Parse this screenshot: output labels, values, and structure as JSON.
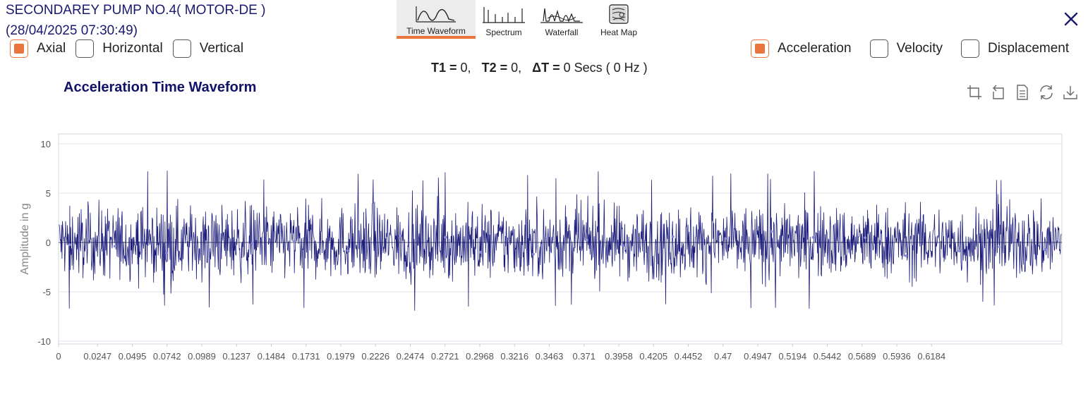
{
  "header": {
    "title_line1": "SECONDAREY PUMP NO.4( MOTOR-DE )",
    "title_line2": "(28/04/2025 07:30:49)"
  },
  "close": {
    "icon": "close-icon"
  },
  "view_tabs": [
    {
      "label": "Time Waveform",
      "icon": "time-waveform-icon",
      "active": true
    },
    {
      "label": "Spectrum",
      "icon": "spectrum-icon",
      "active": false
    },
    {
      "label": "Waterfall",
      "icon": "waterfall-icon",
      "active": false
    },
    {
      "label": "Heat Map",
      "icon": "heat-map-icon",
      "active": false
    }
  ],
  "direction_options": [
    {
      "label": "Axial",
      "checked": true
    },
    {
      "label": "Horizontal",
      "checked": false
    },
    {
      "label": "Vertical",
      "checked": false
    }
  ],
  "measure_options": [
    {
      "label": "Acceleration",
      "checked": true
    },
    {
      "label": "Velocity",
      "checked": false
    },
    {
      "label": "Displacement",
      "checked": false
    }
  ],
  "readout": {
    "t1_label": "T1 =",
    "t1_value": "0,",
    "t2_label": "T2 =",
    "t2_value": "0,",
    "dt_label": "ΔT =",
    "dt_value": "0 Secs ( 0 Hz )"
  },
  "chart_tools": [
    {
      "name": "crop-icon"
    },
    {
      "name": "undo-icon"
    },
    {
      "name": "document-icon"
    },
    {
      "name": "refresh-icon"
    },
    {
      "name": "download-icon"
    }
  ],
  "colors": {
    "accent": "#e8763e",
    "title": "#121268",
    "series": "#1a1a7a"
  },
  "chart_data": {
    "type": "line",
    "title": "Acceleration Time Waveform",
    "xlabel": "",
    "ylabel": "Amplitude in g",
    "xlim": [
      0,
      0.637
    ],
    "ylim": [
      -10,
      10
    ],
    "yticks": [
      10,
      5,
      0,
      -5,
      -10
    ],
    "xticks": [
      "0",
      "0.0247",
      "0.0495",
      "0.0742",
      "0.0989",
      "0.1237",
      "0.1484",
      "0.1731",
      "0.1979",
      "0.2226",
      "0.2474",
      "0.2721",
      "0.2968",
      "0.3216",
      "0.3463",
      "0.371",
      "0.3958",
      "0.4205",
      "0.4452",
      "0.47",
      "0.4947",
      "0.5194",
      "0.5442",
      "0.5689",
      "0.5936",
      "0.6184"
    ],
    "grid": true,
    "series": [
      {
        "description": "dense random vibration signal, approximately ±4 g typical with peaks to about ±7 g",
        "typical_amplitude": 4,
        "peak_min": -7,
        "peak_max": 7.3
      }
    ]
  }
}
